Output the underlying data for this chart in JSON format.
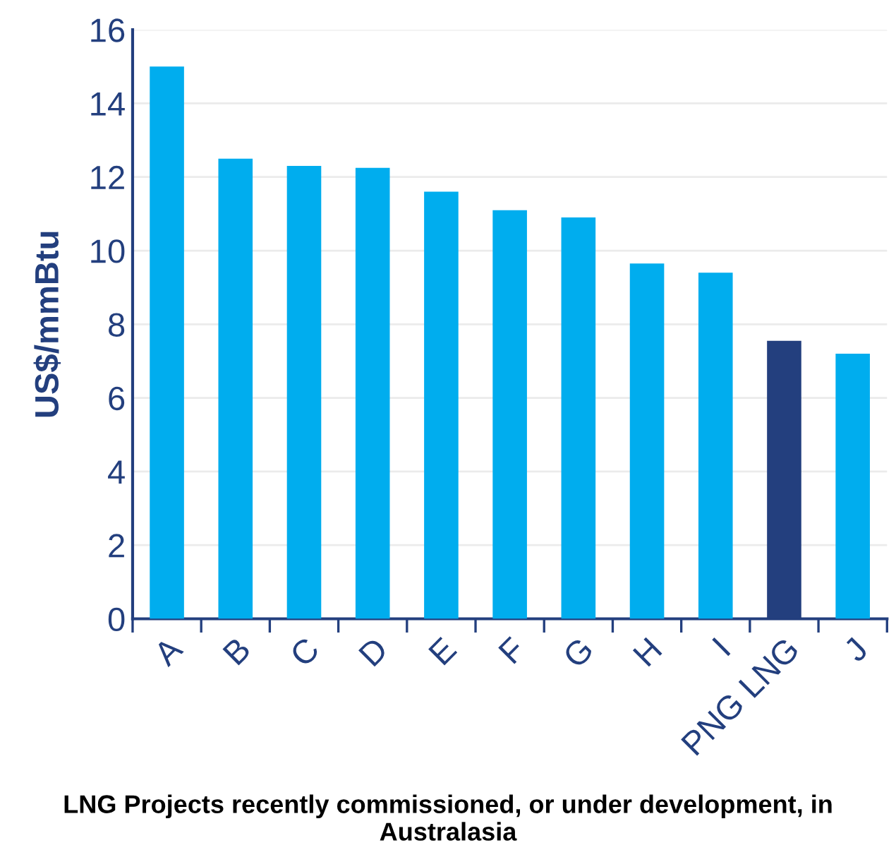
{
  "chart_data": {
    "type": "bar",
    "categories": [
      "A",
      "B",
      "C",
      "D",
      "E",
      "F",
      "G",
      "H",
      "I",
      "PNG LNG",
      "J"
    ],
    "values": [
      15.0,
      12.5,
      12.3,
      12.25,
      11.6,
      11.1,
      10.9,
      9.65,
      9.4,
      7.55,
      7.2
    ],
    "colors": [
      "#00adee",
      "#00adee",
      "#00adee",
      "#00adee",
      "#00adee",
      "#00adee",
      "#00adee",
      "#00adee",
      "#00adee",
      "#233f7e",
      "#00adee"
    ],
    "ylabel": "US$/mmBtu",
    "xlabel": "LNG Projects recently commissioned, or under development, in Australasia",
    "ylim": [
      0,
      16
    ],
    "yticks": [
      0,
      2,
      4,
      6,
      8,
      10,
      12,
      14,
      16
    ],
    "grid": "y"
  }
}
